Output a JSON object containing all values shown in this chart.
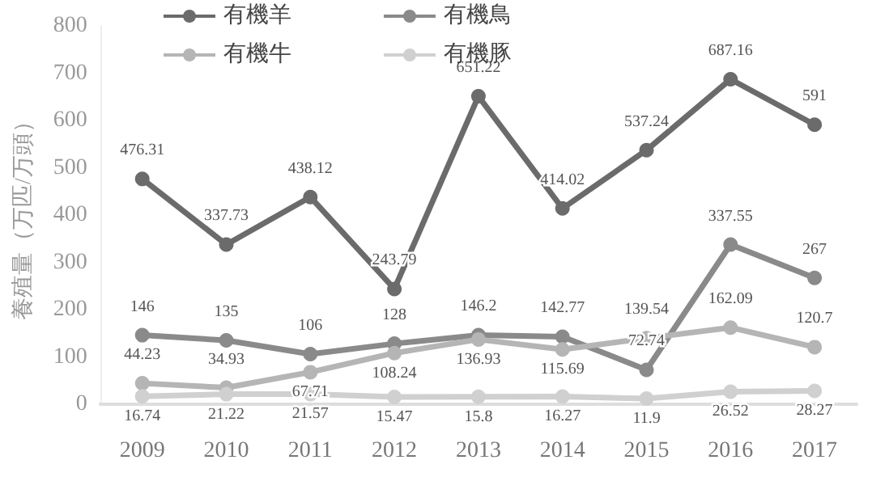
{
  "chart_data": {
    "type": "line",
    "ylabel": "養殖量（万匹/万頭）",
    "categories": [
      "2009",
      "2010",
      "2011",
      "2012",
      "2013",
      "2014",
      "2015",
      "2016",
      "2017"
    ],
    "series": [
      {
        "name": "有機羊",
        "color": "#6b6b6b",
        "values": [
          476.31,
          337.73,
          438.12,
          243.79,
          651.22,
          414.02,
          537.24,
          687.16,
          591
        ]
      },
      {
        "name": "有機鳥",
        "color": "#8a8a8a",
        "values": [
          146,
          135,
          106,
          128,
          146.2,
          142.77,
          72.74,
          337.55,
          267
        ]
      },
      {
        "name": "有機牛",
        "color": "#b5b5b5",
        "values": [
          44.23,
          34.93,
          67.71,
          108.24,
          136.93,
          115.69,
          139.54,
          162.09,
          120.7
        ]
      },
      {
        "name": "有機豚",
        "color": "#d0d0d0",
        "values": [
          16.74,
          21.22,
          21.57,
          15.47,
          15.8,
          16.27,
          11.9,
          26.52,
          28.27
        ]
      }
    ],
    "ylim": [
      0,
      800
    ],
    "yticks": [
      0,
      100,
      200,
      300,
      400,
      500,
      600,
      700,
      800
    ],
    "grid": false,
    "legend": "top",
    "marker": "circle",
    "line_style": "solid",
    "data_labels": true
  }
}
